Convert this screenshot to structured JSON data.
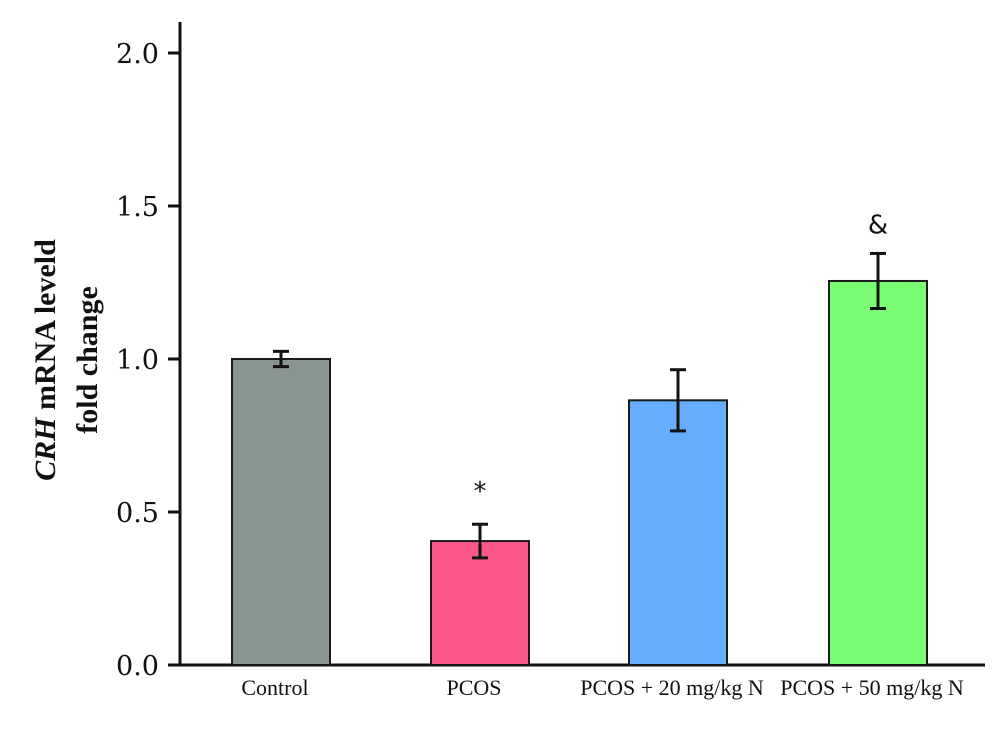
{
  "chart_data": {
    "type": "bar",
    "title": "",
    "xlabel": "",
    "ylabel_italic": "CRH",
    "ylabel_line1_rest": " mRNA leveld",
    "ylabel_line2": "fold change",
    "ylim": [
      0,
      2.0
    ],
    "yticks": [
      0.0,
      0.5,
      1.0,
      1.5,
      2.0
    ],
    "ytick_labels": [
      "0.0",
      "0.5",
      "1.0",
      "1.5",
      "2.0"
    ],
    "grid": false,
    "legend": "none",
    "categories": [
      "Control",
      "PCOS",
      "PCOS + 20 mg/kg N",
      "PCOS + 50 mg/kg N"
    ],
    "values": [
      1.0,
      0.405,
      0.865,
      1.255
    ],
    "errors": [
      0.025,
      0.055,
      0.1,
      0.09
    ],
    "colors": [
      "#889593",
      "#fd5789",
      "#67adfd",
      "#7afc74"
    ],
    "annotations": [
      "",
      "*",
      "",
      "&"
    ]
  }
}
